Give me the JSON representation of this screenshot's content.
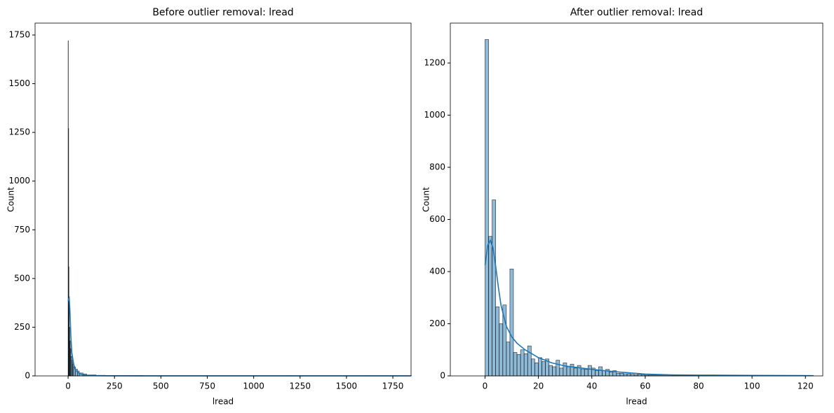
{
  "chart_data": [
    {
      "type": "histogram",
      "title": "Before outlier removal: lread",
      "xlabel": "lread",
      "ylabel": "Count",
      "color": "#1f77b4",
      "grid": false,
      "bins": [
        0,
        1.5,
        3,
        4.5,
        6,
        9,
        12,
        15,
        20,
        25,
        30,
        40,
        50,
        60,
        80,
        100,
        150,
        200,
        400,
        800,
        1200,
        1600,
        1850
      ],
      "counts": [
        1720,
        1270,
        560,
        400,
        250,
        180,
        140,
        100,
        80,
        60,
        45,
        35,
        25,
        15,
        10,
        5,
        3,
        2,
        1,
        1,
        1,
        1
      ],
      "kde": {
        "x": [
          0,
          3,
          6,
          10,
          15,
          20,
          30,
          40,
          60,
          80,
          100,
          150,
          200,
          400,
          800,
          1200,
          1600,
          1845
        ],
        "values": [
          385,
          395,
          400,
          330,
          200,
          120,
          60,
          30,
          12,
          6,
          3,
          1,
          0.5,
          0.2,
          0.1,
          0.1,
          0.1,
          0.1
        ]
      },
      "xlim": [
        -178,
        1848
      ],
      "ylim": [
        0,
        1811
      ],
      "xticks": [
        0,
        250,
        500,
        750,
        1000,
        1250,
        1500,
        1750
      ],
      "yticks": [
        0,
        250,
        500,
        750,
        1000,
        1250,
        1500,
        1750
      ]
    },
    {
      "type": "histogram",
      "title": "After outlier removal: lread",
      "xlabel": "lread",
      "ylabel": "Count",
      "color": "#1f77b4",
      "grid": false,
      "bins": [
        0,
        1.33,
        2.66,
        3.99,
        5.32,
        6.65,
        7.98,
        9.31,
        10.64,
        11.97,
        13.3,
        14.63,
        15.96,
        17.29,
        18.62,
        19.95,
        21.28,
        22.61,
        23.94,
        25.27,
        26.6,
        27.93,
        29.26,
        30.59,
        31.92,
        33.25,
        34.58,
        35.91,
        37.24,
        38.57,
        39.9,
        41.23,
        42.56,
        43.89,
        45.22,
        46.55,
        47.88,
        49.21,
        50.54,
        51.87,
        53.2,
        54.53,
        55.86,
        57.19,
        58.52,
        59.85,
        61.18,
        70,
        80,
        90,
        100,
        110,
        123
      ],
      "counts": [
        1290,
        535,
        675,
        265,
        200,
        272,
        130,
        410,
        90,
        82,
        100,
        85,
        115,
        65,
        50,
        70,
        55,
        65,
        40,
        35,
        60,
        30,
        50,
        35,
        45,
        30,
        40,
        25,
        25,
        40,
        30,
        20,
        35,
        20,
        25,
        15,
        20,
        10,
        10,
        8,
        8,
        6,
        5,
        6,
        4,
        3,
        3,
        2,
        2,
        1,
        1,
        1
      ],
      "kde": {
        "x": [
          0,
          1,
          2,
          3,
          4,
          5,
          6,
          8,
          10,
          12,
          15,
          20,
          25,
          30,
          40,
          50,
          60,
          70,
          80,
          100,
          123
        ],
        "values": [
          425,
          500,
          520,
          490,
          420,
          340,
          270,
          190,
          150,
          125,
          100,
          70,
          50,
          38,
          25,
          15,
          7,
          4,
          3,
          2,
          1
        ]
      },
      "xlim": [
        -13,
        126.5
      ],
      "ylim": [
        0,
        1353
      ],
      "xticks": [
        0,
        20,
        40,
        60,
        80,
        100,
        120
      ],
      "yticks": [
        0,
        200,
        400,
        600,
        800,
        1000,
        1200
      ]
    }
  ]
}
